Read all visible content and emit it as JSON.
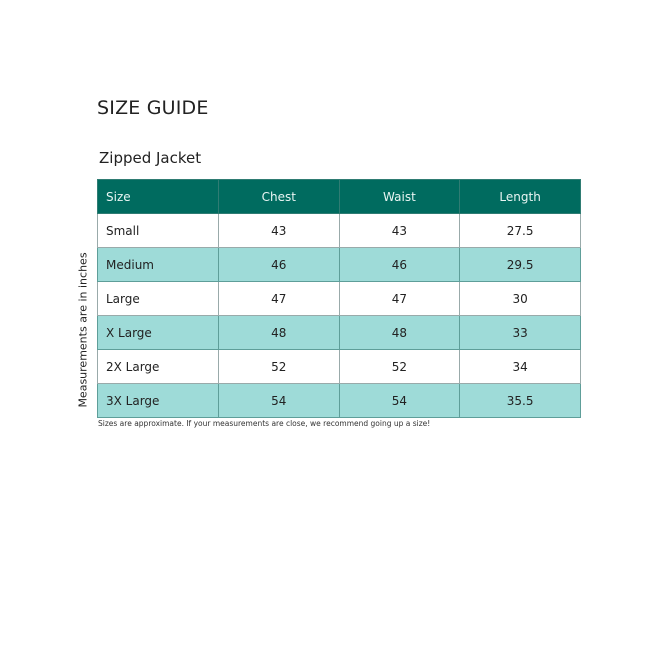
{
  "title": "SIZE GUIDE",
  "subtitle": "Zipped Jacket",
  "side_label": "Measurements are in inches",
  "table": {
    "headers": [
      "Size",
      "Chest",
      "Waist",
      "Length"
    ],
    "rows": [
      [
        "Small",
        "43",
        "43",
        "27.5"
      ],
      [
        "Medium",
        "46",
        "46",
        "29.5"
      ],
      [
        "Large",
        "47",
        "47",
        "30"
      ],
      [
        "X Large",
        "48",
        "48",
        "33"
      ],
      [
        "2X Large",
        "52",
        "52",
        "34"
      ],
      [
        "3X Large",
        "54",
        "54",
        "35.5"
      ]
    ]
  },
  "note": "Sizes are approximate. If your measurements are close, we recommend going up a size!",
  "colors": {
    "header_bg": "#006b5f",
    "alt_row_bg": "#9edbd8"
  }
}
